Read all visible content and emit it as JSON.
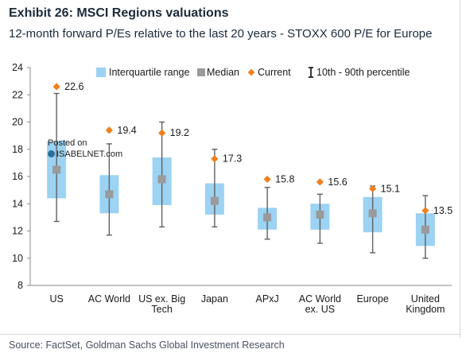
{
  "header": {
    "title": "Exhibit 26: MSCI Regions valuations",
    "subtitle": "12-month forward P/Es relative to the last 20 years - STOXX 600 P/E for Europe"
  },
  "footer": {
    "source": "Source: FactSet, Goldman Sachs Global Investment Research"
  },
  "watermark": {
    "line1": "Posted on",
    "line2": "ISABELNET.com"
  },
  "colors": {
    "iqr": "#9cd2f2",
    "median": "#9a9a9a",
    "current": "#f07f1e",
    "whisker": "#606060"
  },
  "chart_data": {
    "type": "box",
    "title": "Exhibit 26: MSCI Regions valuations",
    "subtitle": "12-month forward P/Es relative to the last 20 years - STOXX 600 P/E for Europe",
    "xlabel": "",
    "ylabel": "",
    "ylim": [
      8,
      24
    ],
    "yticks": [
      8,
      10,
      12,
      14,
      16,
      18,
      20,
      22,
      24
    ],
    "grid": false,
    "legend_position": "top",
    "legend": [
      {
        "label": "Interquartile range",
        "kind": "iqr"
      },
      {
        "label": "Median",
        "kind": "median"
      },
      {
        "label": "Current",
        "kind": "current"
      },
      {
        "label": "10th - 90th percentile",
        "kind": "whisker"
      }
    ],
    "categories": [
      [
        "US"
      ],
      [
        "AC World"
      ],
      [
        "US ex. Big",
        "Tech"
      ],
      [
        "Japan"
      ],
      [
        "APxJ"
      ],
      [
        "AC World",
        "ex. US"
      ],
      [
        "Europe"
      ],
      [
        "United",
        "Kingdom"
      ]
    ],
    "series": [
      {
        "name": "Interquartile range",
        "q1": [
          14.4,
          13.3,
          13.9,
          13.2,
          12.1,
          12.1,
          11.9,
          10.9
        ],
        "q3": [
          18.6,
          16.1,
          17.4,
          15.5,
          13.7,
          14.0,
          14.5,
          13.3
        ]
      },
      {
        "name": "Median",
        "values": [
          16.5,
          14.7,
          15.8,
          14.2,
          13.0,
          13.2,
          13.3,
          12.1
        ]
      },
      {
        "name": "Current",
        "values": [
          22.6,
          19.4,
          19.2,
          17.3,
          15.8,
          15.6,
          15.1,
          13.5
        ]
      },
      {
        "name": "10th - 90th percentile",
        "p10": [
          12.7,
          11.7,
          12.3,
          12.3,
          11.4,
          11.1,
          10.4,
          10.0
        ],
        "p90": [
          22.1,
          18.4,
          20.0,
          18.0,
          15.2,
          14.7,
          15.3,
          14.6
        ]
      }
    ],
    "data_labels": [
      "22.6",
      "19.4",
      "19.2",
      "17.3",
      "15.8",
      "15.6",
      "15.1",
      "13.5"
    ]
  }
}
